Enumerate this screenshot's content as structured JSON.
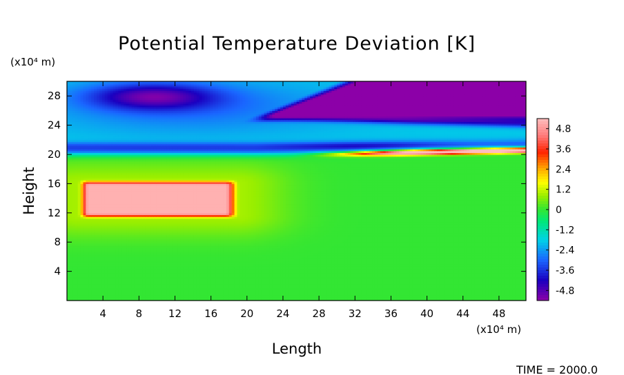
{
  "chart_data": {
    "type": "heatmap",
    "title": "Potential Temperature Deviation [K]",
    "xlabel": "Length",
    "ylabel": "Height",
    "x_unit_label": "(x10⁴ m)",
    "y_unit_label": "(x10⁴ m)",
    "footer": "TIME = 2000.0",
    "xlim": [
      0,
      51
    ],
    "ylim": [
      0,
      30
    ],
    "x_ticks": [
      4,
      8,
      12,
      16,
      20,
      24,
      28,
      32,
      36,
      40,
      44,
      48
    ],
    "y_ticks": [
      4,
      8,
      12,
      16,
      20,
      24,
      28
    ],
    "colorbar": {
      "min": -5.4,
      "max": 5.4,
      "tick_values": [
        4.8,
        3.6,
        2.4,
        1.2,
        0,
        -1.2,
        -2.4,
        -3.6,
        -4.8
      ],
      "tick_labels": [
        "4.8",
        "3.6",
        "2.4",
        "1.2",
        "0",
        "-1.2",
        "-2.4",
        "-3.6",
        "-4.8"
      ],
      "stops": [
        [
          -5.4,
          "#8c00a8"
        ],
        [
          -4.2,
          "#1a00c0"
        ],
        [
          -3.0,
          "#1a66ff"
        ],
        [
          -1.8,
          "#00d2e6"
        ],
        [
          -0.7,
          "#00e878"
        ],
        [
          0.0,
          "#33e633"
        ],
        [
          0.8,
          "#99ee00"
        ],
        [
          1.6,
          "#ffff00"
        ],
        [
          2.4,
          "#ffaa00"
        ],
        [
          3.4,
          "#ff2200"
        ],
        [
          4.4,
          "#ff7d7d"
        ],
        [
          5.4,
          "#ffbebe"
        ]
      ]
    },
    "features": [
      {
        "name": "warm bubble",
        "x_range": [
          1.5,
          19
        ],
        "y_range": [
          11.5,
          16.5
        ],
        "core_value": 5.0
      },
      {
        "name": "cold anomaly upper-left",
        "x_center": 9.5,
        "y_center": 28,
        "value": -4.4
      },
      {
        "name": "cold region upper-right",
        "x_range": [
          29,
          51
        ],
        "y_range": [
          24,
          30
        ],
        "value": -5.2
      },
      {
        "name": "cold band near tropopause",
        "y": 20.7,
        "value": -5.0
      },
      {
        "name": "warm streak right",
        "x_range": [
          26,
          51
        ],
        "y_range": [
          19.7,
          21.5
        ],
        "value": 4.0
      }
    ]
  }
}
